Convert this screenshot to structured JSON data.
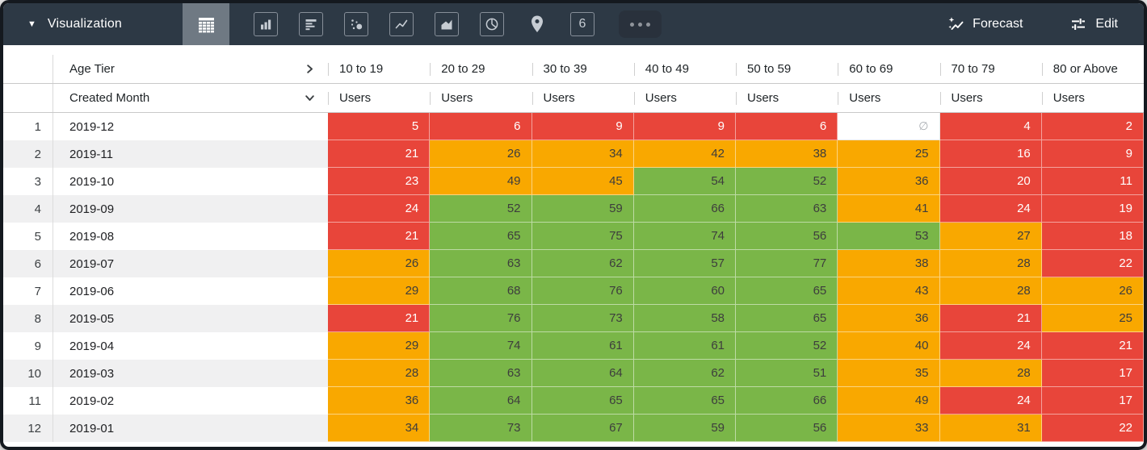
{
  "toolbar": {
    "title": "Visualization",
    "forecast_label": "Forecast",
    "edit_label": "Edit",
    "chart_types": [
      {
        "icon": "table-chart-icon",
        "active": true
      },
      {
        "icon": "column-chart-icon"
      },
      {
        "icon": "bar-chart-icon"
      },
      {
        "icon": "scatter-chart-icon"
      },
      {
        "icon": "line-chart-icon"
      },
      {
        "icon": "area-chart-icon"
      },
      {
        "icon": "pie-chart-icon"
      },
      {
        "icon": "map-pin-icon"
      },
      {
        "icon": "single-value-icon",
        "label": "6"
      },
      {
        "icon": "more-charts-icon"
      }
    ]
  },
  "table": {
    "pivot_field": "Age Tier",
    "row_field": "Created Month",
    "measure": "Users",
    "null_symbol": "∅",
    "columns": [
      "10 to 19",
      "20 to 29",
      "30 to 39",
      "40 to 49",
      "50 to 59",
      "60 to 69",
      "70 to 79",
      "80 or Above"
    ],
    "rows": [
      {
        "index": 1,
        "month": "2019-12",
        "values": [
          5,
          6,
          9,
          9,
          6,
          null,
          4,
          2
        ],
        "colors": [
          "red",
          "red",
          "red",
          "red",
          "red",
          "null",
          "red",
          "red"
        ]
      },
      {
        "index": 2,
        "month": "2019-11",
        "values": [
          21,
          26,
          34,
          42,
          38,
          25,
          16,
          9
        ],
        "colors": [
          "red",
          "orange",
          "orange",
          "orange",
          "orange",
          "orange",
          "red",
          "red"
        ]
      },
      {
        "index": 3,
        "month": "2019-10",
        "values": [
          23,
          49,
          45,
          54,
          52,
          36,
          20,
          11
        ],
        "colors": [
          "red",
          "orange",
          "orange",
          "green",
          "green",
          "orange",
          "red",
          "red"
        ]
      },
      {
        "index": 4,
        "month": "2019-09",
        "values": [
          24,
          52,
          59,
          66,
          63,
          41,
          24,
          19
        ],
        "colors": [
          "red",
          "green",
          "green",
          "green",
          "green",
          "orange",
          "red",
          "red"
        ]
      },
      {
        "index": 5,
        "month": "2019-08",
        "values": [
          21,
          65,
          75,
          74,
          56,
          53,
          27,
          18
        ],
        "colors": [
          "red",
          "green",
          "green",
          "green",
          "green",
          "green",
          "orange",
          "red"
        ]
      },
      {
        "index": 6,
        "month": "2019-07",
        "values": [
          26,
          63,
          62,
          57,
          77,
          38,
          28,
          22
        ],
        "colors": [
          "orange",
          "green",
          "green",
          "green",
          "green",
          "orange",
          "orange",
          "red"
        ]
      },
      {
        "index": 7,
        "month": "2019-06",
        "values": [
          29,
          68,
          76,
          60,
          65,
          43,
          28,
          26
        ],
        "colors": [
          "orange",
          "green",
          "green",
          "green",
          "green",
          "orange",
          "orange",
          "orange"
        ]
      },
      {
        "index": 8,
        "month": "2019-05",
        "values": [
          21,
          76,
          73,
          58,
          65,
          36,
          21,
          25
        ],
        "colors": [
          "red",
          "green",
          "green",
          "green",
          "green",
          "orange",
          "red",
          "orange"
        ]
      },
      {
        "index": 9,
        "month": "2019-04",
        "values": [
          29,
          74,
          61,
          61,
          52,
          40,
          24,
          21
        ],
        "colors": [
          "orange",
          "green",
          "green",
          "green",
          "green",
          "orange",
          "red",
          "red"
        ]
      },
      {
        "index": 10,
        "month": "2019-03",
        "values": [
          28,
          63,
          64,
          62,
          51,
          35,
          28,
          17
        ],
        "colors": [
          "orange",
          "green",
          "green",
          "green",
          "green",
          "orange",
          "orange",
          "red"
        ]
      },
      {
        "index": 11,
        "month": "2019-02",
        "values": [
          36,
          64,
          65,
          65,
          66,
          49,
          24,
          17
        ],
        "colors": [
          "orange",
          "green",
          "green",
          "green",
          "green",
          "orange",
          "red",
          "red"
        ]
      },
      {
        "index": 12,
        "month": "2019-01",
        "values": [
          34,
          73,
          67,
          59,
          56,
          33,
          31,
          22
        ],
        "colors": [
          "orange",
          "green",
          "green",
          "green",
          "green",
          "orange",
          "orange",
          "red"
        ]
      }
    ]
  },
  "colors": {
    "red": "#e8453a",
    "orange": "#f9a800",
    "green": "#7ab648",
    "toolbar_bg": "#2d3945",
    "active_tile_bg": "#6f7983"
  }
}
